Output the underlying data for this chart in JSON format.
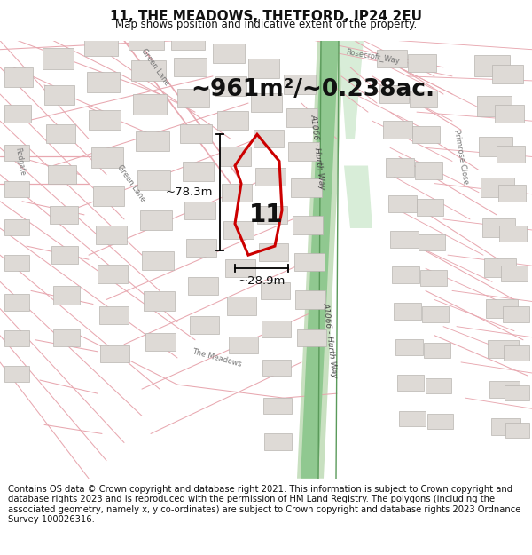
{
  "title": "11, THE MEADOWS, THETFORD, IP24 2EU",
  "subtitle": "Map shows position and indicative extent of the property.",
  "area_text": "~961m²/~0.238ac.",
  "property_number": "11",
  "dim_width_text": "~28.9m",
  "dim_height_text": "~78.3m",
  "footer_text": "Contains OS data © Crown copyright and database right 2021. This information is subject to Crown copyright and database rights 2023 and is reproduced with the permission of HM Land Registry. The polygons (including the associated geometry, namely x, y co-ordinates) are subject to Crown copyright and database rights 2023 Ordnance Survey 100026316.",
  "map_bg": "#f5f2ef",
  "road_color": "#e8a8b0",
  "road_lw": 0.8,
  "property_color": "#cc0000",
  "green_strip_color": "#90c890",
  "green_strip_edge": "#5a9a5a",
  "building_fill": "#dedad6",
  "building_edge": "#b8b4b0",
  "text_color": "#111111",
  "road_text_color": "#444444",
  "footer_bg": "#ffffff",
  "title_fontsize": 11,
  "subtitle_fontsize": 8.5,
  "area_fontsize": 19,
  "dim_fontsize": 9.5,
  "number_fontsize": 20,
  "footer_fontsize": 7.2
}
